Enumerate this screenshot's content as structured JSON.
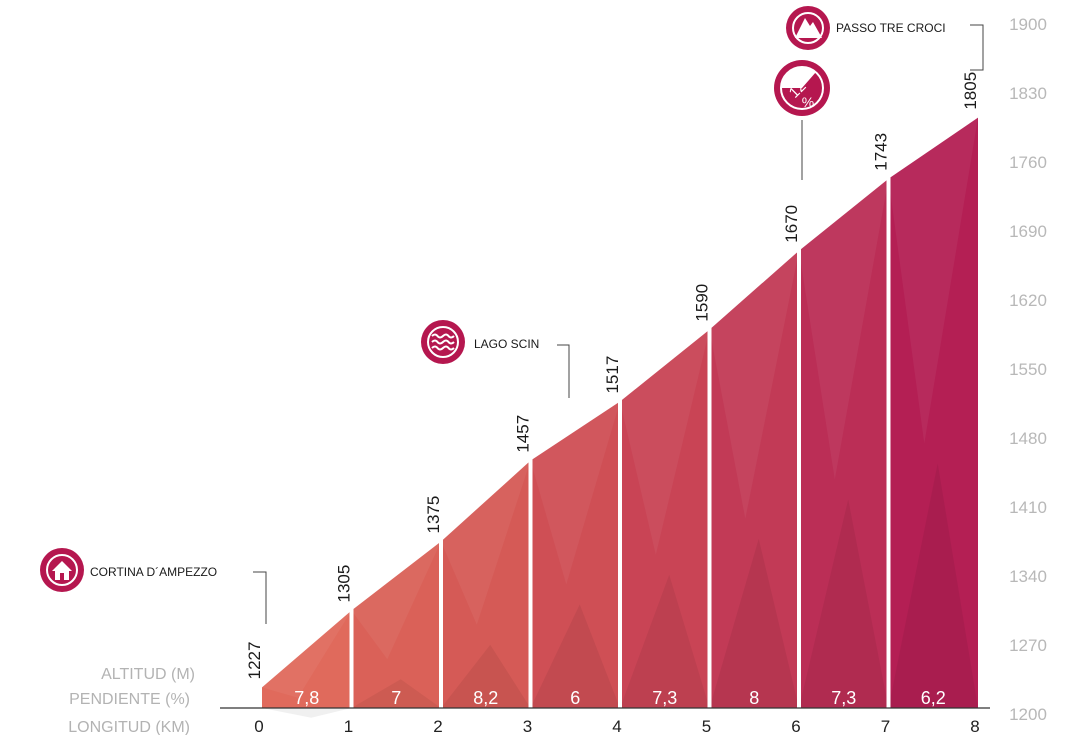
{
  "chart_data": {
    "type": "area",
    "subtype": "climb-elevation-profile",
    "xlabel": "LONGITUD (KM)",
    "row_labels": {
      "altitude": "ALTITUD (M)",
      "gradient": "PENDIENTE (%)",
      "length": "LONGITUD (KM)"
    },
    "x_ticks": [
      "0",
      "1",
      "2",
      "3",
      "4",
      "5",
      "6",
      "7",
      "8"
    ],
    "y_ticks": [
      "1200",
      "1270",
      "1340",
      "1410",
      "1480",
      "1550",
      "1620",
      "1690",
      "1760",
      "1830",
      "1900"
    ],
    "xlim": [
      0,
      8
    ],
    "ylim": [
      1200,
      1900
    ],
    "km": [
      0,
      1,
      2,
      3,
      4,
      5,
      6,
      7,
      8
    ],
    "altitudes": [
      1227,
      1305,
      1375,
      1457,
      1517,
      1590,
      1670,
      1743,
      1805
    ],
    "altitude_labels": [
      "1227",
      "1305",
      "1375",
      "1457",
      "1517",
      "1590",
      "1670",
      "1743",
      "1805"
    ],
    "gradients": [
      "7,8",
      "7",
      "8,2",
      "6",
      "7,3",
      "8",
      "7,3",
      "6,2"
    ],
    "gradient_colors": [
      "#e06a5c",
      "#da6158",
      "#d55a56",
      "#cf4f55",
      "#c94455",
      "#c23a56",
      "#bb2e56",
      "#b41f54"
    ],
    "points_of_interest": [
      {
        "name": "CORTINA D´AMPEZZO",
        "km": 0,
        "icon": "house-icon"
      },
      {
        "name": "LAGO SCIN",
        "km": 3.4,
        "icon": "water-icon"
      },
      {
        "name": "PASSO TRE CROCI",
        "km": 8,
        "icon": "mountain-icon"
      }
    ],
    "max_gradient_badge": {
      "value": "12",
      "unit": "%",
      "km": 6
    },
    "grid": false
  },
  "colors": {
    "badge": "#b5174f",
    "axis_text": "#b8b8b8",
    "leader_line": "#444444"
  }
}
